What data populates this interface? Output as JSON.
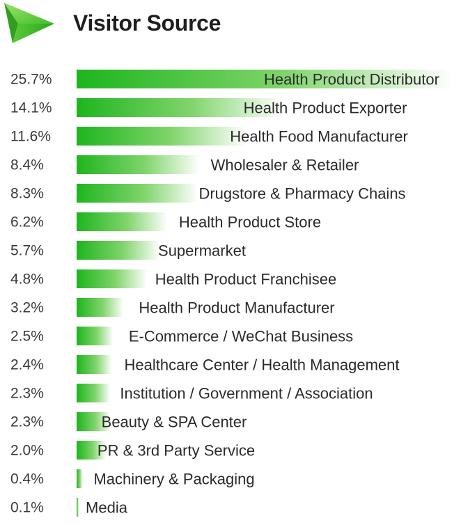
{
  "header": {
    "title": "Visitor Source",
    "logo_icon": "green-triangle-arrow-icon"
  },
  "colors": {
    "bar_start": "#1eb51e",
    "bar_end": "#ffffff",
    "accent": "#3cc23c"
  },
  "chart_data": {
    "type": "bar",
    "orientation": "horizontal",
    "title": "Visitor Source",
    "xlabel": "",
    "ylabel": "",
    "xlim": [
      0,
      25.7
    ],
    "grid": false,
    "legend": "none",
    "value_format": "percent",
    "categories": [
      "Health Product Distributor",
      "Health Product Exporter",
      "Health Food Manufacturer",
      "Wholesaler & Retailer",
      "Drugstore & Pharmacy Chains",
      "Health Product Store",
      "Supermarket",
      "Health Product Franchisee",
      "Health Product Manufacturer",
      "E-Commerce / WeChat Business",
      "Healthcare Center / Health Management",
      "Institution / Government / Association",
      "Beauty & SPA Center",
      "PR & 3rd Party Service",
      "Machinery & Packaging",
      "Media"
    ],
    "values": [
      25.7,
      14.1,
      11.6,
      8.4,
      8.3,
      6.2,
      5.7,
      4.8,
      3.2,
      2.5,
      2.4,
      2.3,
      2.3,
      2.0,
      0.4,
      0.1
    ],
    "labels": [
      "25.7%",
      "14.1%",
      "11.6%",
      "8.4%",
      "8.3%",
      "6.2%",
      "5.7%",
      "4.8%",
      "3.2%",
      "2.5%",
      "2.4%",
      "2.3%",
      "2.3%",
      "2.0%",
      "0.4%",
      "0.1%"
    ]
  }
}
